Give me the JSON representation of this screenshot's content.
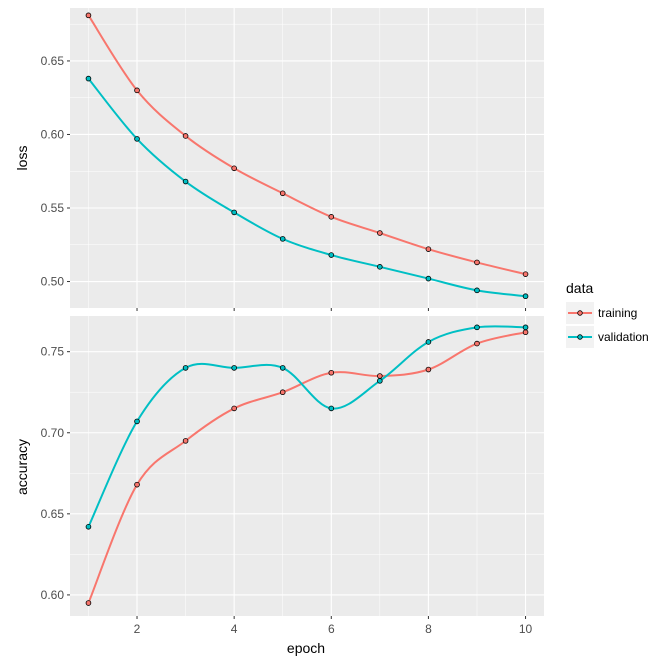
{
  "chart_data": [
    {
      "type": "line",
      "panel": "loss",
      "ylabel": "loss",
      "xlabel": "",
      "x": [
        1,
        2,
        3,
        4,
        5,
        6,
        7,
        8,
        9,
        10
      ],
      "xlim": [
        0.62,
        10.38
      ],
      "ylim": [
        0.482,
        0.686
      ],
      "yticks": [
        "0.50",
        "0.55",
        "0.60",
        "0.65"
      ],
      "ytick_values": [
        0.5,
        0.55,
        0.6,
        0.65
      ],
      "series": [
        {
          "name": "training",
          "color": "#F8766D",
          "values": [
            0.681,
            0.63,
            0.599,
            0.577,
            0.56,
            0.544,
            0.533,
            0.522,
            0.513,
            0.505
          ]
        },
        {
          "name": "validation",
          "color": "#00BFC4",
          "values": [
            0.638,
            0.597,
            0.568,
            0.547,
            0.529,
            0.518,
            0.51,
            0.502,
            0.494,
            0.49
          ]
        }
      ],
      "grid": true
    },
    {
      "type": "line",
      "panel": "accuracy",
      "ylabel": "accuracy",
      "xlabel": "epoch",
      "x": [
        1,
        2,
        3,
        4,
        5,
        6,
        7,
        8,
        9,
        10
      ],
      "xlim": [
        0.62,
        10.38
      ],
      "ylim": [
        0.587,
        0.772
      ],
      "xticks": [
        "2",
        "4",
        "6",
        "8",
        "10"
      ],
      "xtick_values": [
        2,
        4,
        6,
        8,
        10
      ],
      "yticks": [
        "0.60",
        "0.65",
        "0.70",
        "0.75"
      ],
      "ytick_values": [
        0.6,
        0.65,
        0.7,
        0.75
      ],
      "series": [
        {
          "name": "training",
          "color": "#F8766D",
          "values": [
            0.595,
            0.668,
            0.695,
            0.715,
            0.725,
            0.737,
            0.735,
            0.739,
            0.755,
            0.762
          ]
        },
        {
          "name": "validation",
          "color": "#00BFC4",
          "values": [
            0.642,
            0.707,
            0.74,
            0.74,
            0.74,
            0.715,
            0.732,
            0.756,
            0.765,
            0.765
          ]
        }
      ],
      "grid": true
    }
  ],
  "legend": {
    "title": "data",
    "placement": "right",
    "items": [
      {
        "label": "training",
        "color": "#F8766D"
      },
      {
        "label": "validation",
        "color": "#00BFC4"
      }
    ]
  }
}
